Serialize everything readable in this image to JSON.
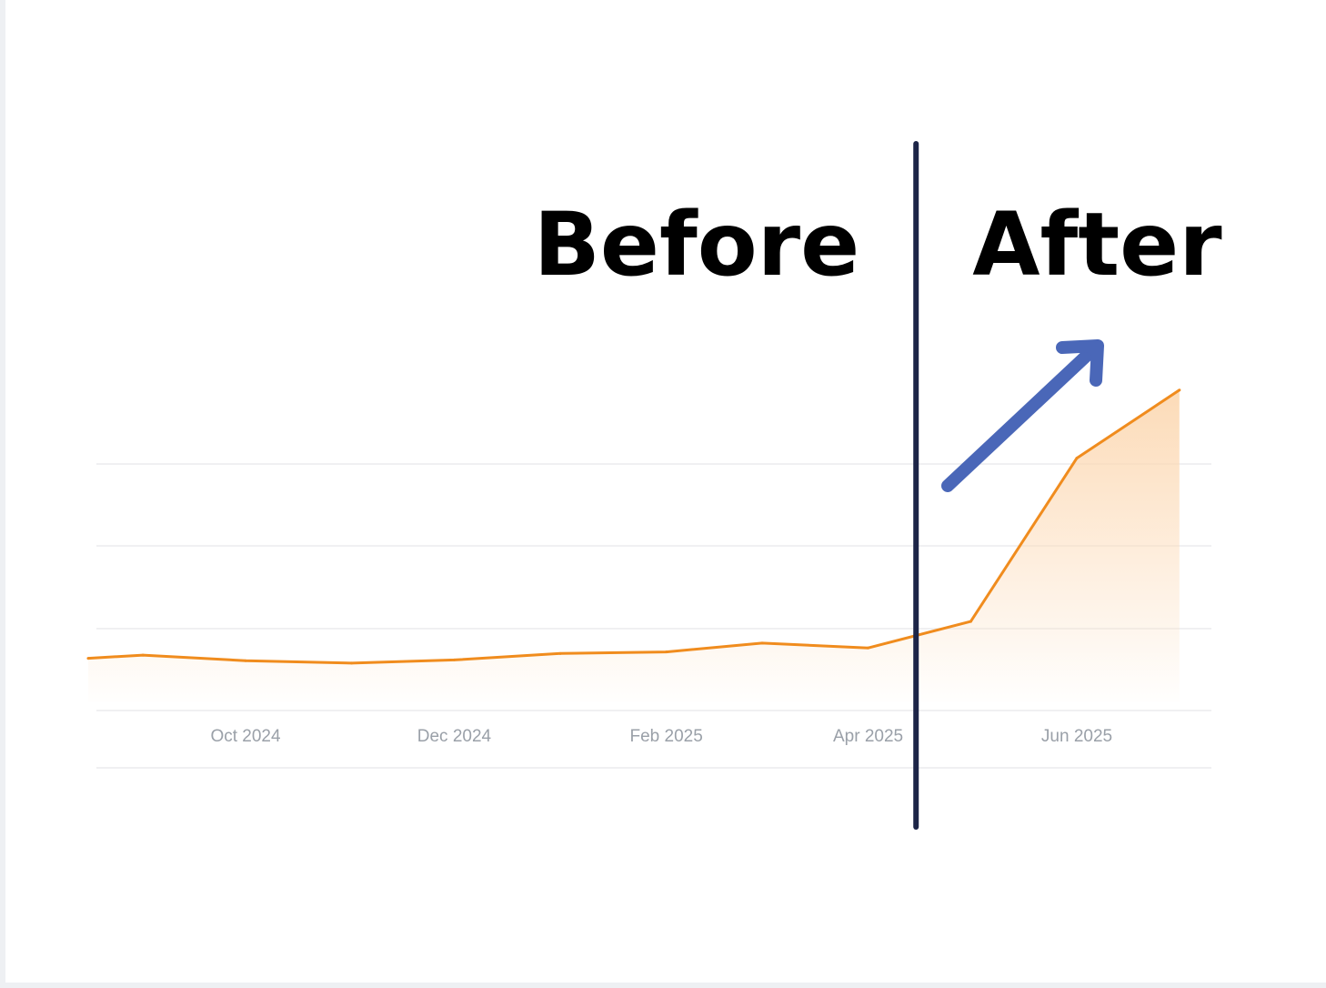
{
  "chart_data": {
    "type": "area",
    "title": "",
    "xlabel": "",
    "ylabel": "",
    "x": [
      "2024-08-16",
      "2024-09-01",
      "2024-10-01",
      "2024-11-01",
      "2024-12-01",
      "2025-01-01",
      "2025-02-01",
      "2025-03-01",
      "2025-04-01",
      "2025-05-01",
      "2025-06-01",
      "2025-07-01"
    ],
    "series": [
      {
        "values": [
          5.5,
          5.9,
          5.2,
          4.9,
          5.3,
          6.1,
          6.3,
          7.4,
          6.8,
          10.1,
          30.5,
          39.0
        ]
      }
    ],
    "ylim": [
      0,
      40
    ],
    "x_ticks": [
      "Oct 2024",
      "Dec 2024",
      "Feb 2025",
      "Apr 2025",
      "Jun 2025"
    ],
    "x_tick_dates": [
      "2024-10-01",
      "2024-12-01",
      "2025-02-01",
      "2025-04-01",
      "2025-06-01"
    ],
    "grid": true,
    "divider_date": "2025-04-15",
    "annotations": {
      "before": "Before",
      "after": "After",
      "arrow": "trend-up-arrow"
    },
    "colors": {
      "line": "#f08c1e",
      "fill": "#fcd9b4",
      "divider": "#1c2447",
      "arrow": "#4a67b8",
      "grid": "#ececee",
      "tick_label": "#9aa0a8"
    }
  }
}
